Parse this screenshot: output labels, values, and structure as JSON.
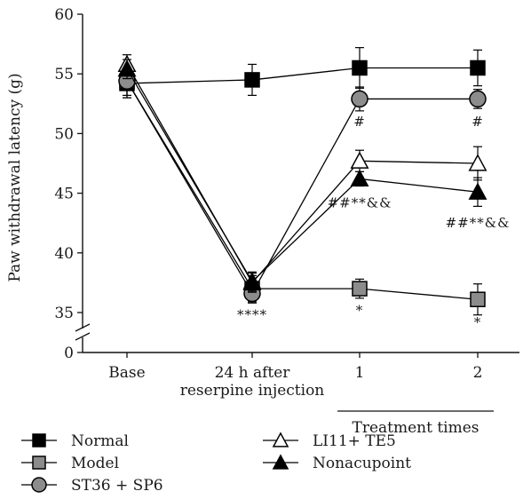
{
  "chart_data": {
    "type": "line",
    "ylabel": "Paw withdrawal latency (g)",
    "categories": [
      [
        "Base"
      ],
      [
        "24 h after",
        "reserpine injection"
      ],
      [
        "1"
      ],
      [
        "2"
      ]
    ],
    "x_group_label": "Treatment times",
    "y_ticks": [
      "0",
      "35",
      "40",
      "45",
      "50",
      "55",
      "60"
    ],
    "ylim": [
      35,
      60
    ],
    "y_axis_break": true,
    "grid": false,
    "legend_position": "bottom",
    "series": [
      {
        "name": "Normal",
        "marker": "square",
        "fill": "#000000",
        "values": [
          54.2,
          54.5,
          55.5,
          55.5
        ],
        "err": [
          1.2,
          1.3,
          1.7,
          1.5
        ]
      },
      {
        "name": "Model",
        "marker": "square",
        "fill": "#8c8c8c",
        "values": [
          54.4,
          37.0,
          37.0,
          36.1
        ],
        "err": [
          1.2,
          1.1,
          0.8,
          1.3
        ]
      },
      {
        "name": "ST36 + SP6",
        "marker": "circle",
        "fill": "#8c8c8c",
        "values": [
          54.4,
          36.6,
          52.9,
          52.9
        ],
        "err": [
          1.4,
          0.8,
          1.0,
          0.8
        ]
      },
      {
        "name": "LI11+ TE5",
        "marker": "triangle",
        "fill": "#ffffff",
        "values": [
          55.8,
          37.5,
          47.7,
          47.5
        ],
        "err": [
          0.8,
          0.8,
          0.9,
          1.4
        ]
      },
      {
        "name": "Nonacupoint",
        "marker": "triangle",
        "fill": "#000000",
        "values": [
          55.4,
          37.6,
          46.2,
          45.1
        ],
        "err": [
          0.8,
          0.8,
          0.6,
          1.2
        ]
      }
    ],
    "annotations": [
      {
        "text": "****",
        "xi": 1,
        "y": 34.8
      },
      {
        "text": "*",
        "xi": 2,
        "y": 35.2
      },
      {
        "text": "*",
        "xi": 3,
        "y": 34.2
      },
      {
        "text": "#",
        "xi": 2,
        "y": 51.0
      },
      {
        "text": "#",
        "xi": 3,
        "y": 51.0
      },
      {
        "text": "##**&&",
        "xi": 2,
        "y": 44.2
      },
      {
        "text": "##**&&",
        "xi": 3,
        "y": 42.5
      }
    ]
  }
}
